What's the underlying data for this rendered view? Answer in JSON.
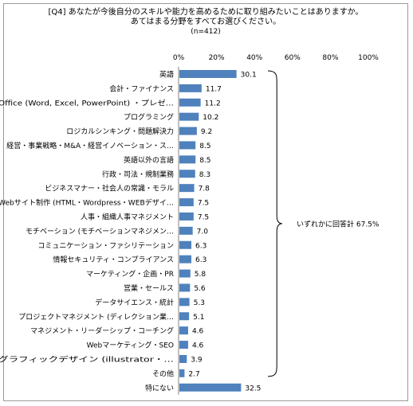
{
  "chart_data": {
    "type": "bar",
    "orientation": "horizontal",
    "title": "[Q4] あなたが今後自分のスキルや能力を高めるために取り組みたいことはありますか。",
    "subtitle": "あてはまる分野をすべてお選びください。",
    "note": "(n=412)",
    "x_ticks": [
      "0%",
      "20%",
      "40%",
      "60%",
      "80%",
      "100%"
    ],
    "xlim": [
      0,
      100
    ],
    "grid": false,
    "bar_color": "#4f81bd",
    "categories": [
      "英語",
      "会計・ファイナンス",
      "Office (Word, Excel, PowerPoint) ・プレゼ…",
      "プログラミング",
      "ロジカルシンキング・問題解決力",
      "経営・事業戦略・M&A・経営イノベーション・ス…",
      "英語以外の言語",
      "行政・司法・規制業務",
      "ビジネスマナー・社会人の常識・モラル",
      "Webサイト制作 (HTML・Wordpress・WEBデザイ…",
      "人事・組織人事マネジメント",
      "モチベーション (モチベーションマネジメン…",
      "コミュニケーション・ファシリテーション",
      "情報セキュリティ・コンプライアンス",
      "マーケティング・企画・PR",
      "営業・セールス",
      "データサイエンス・統計",
      "プロジェクトマネジメント (ディレクション業…",
      "マネジメント・リーダーシップ・コーチング",
      "Webマーケティング・SEO",
      "グラフィックデザイン (illustrator・…",
      "その他",
      "特にない"
    ],
    "values": [
      30.1,
      11.7,
      11.2,
      10.2,
      9.2,
      8.5,
      8.5,
      8.3,
      7.8,
      7.5,
      7.5,
      7.0,
      6.3,
      6.3,
      5.8,
      5.6,
      5.3,
      5.1,
      4.6,
      4.6,
      3.9,
      2.7,
      32.5
    ],
    "value_labels": [
      "30.1",
      "11.7",
      "11.2",
      "10.2",
      "9.2",
      "8.5",
      "8.5",
      "8.3",
      "7.8",
      "7.5",
      "7.5",
      "7.0",
      "6.3",
      "6.3",
      "5.8",
      "5.6",
      "5.3",
      "5.1",
      "4.6",
      "4.6",
      "3.9",
      "2.7",
      "32.5"
    ],
    "annotation": "いずれかに回答計 67.5%"
  }
}
